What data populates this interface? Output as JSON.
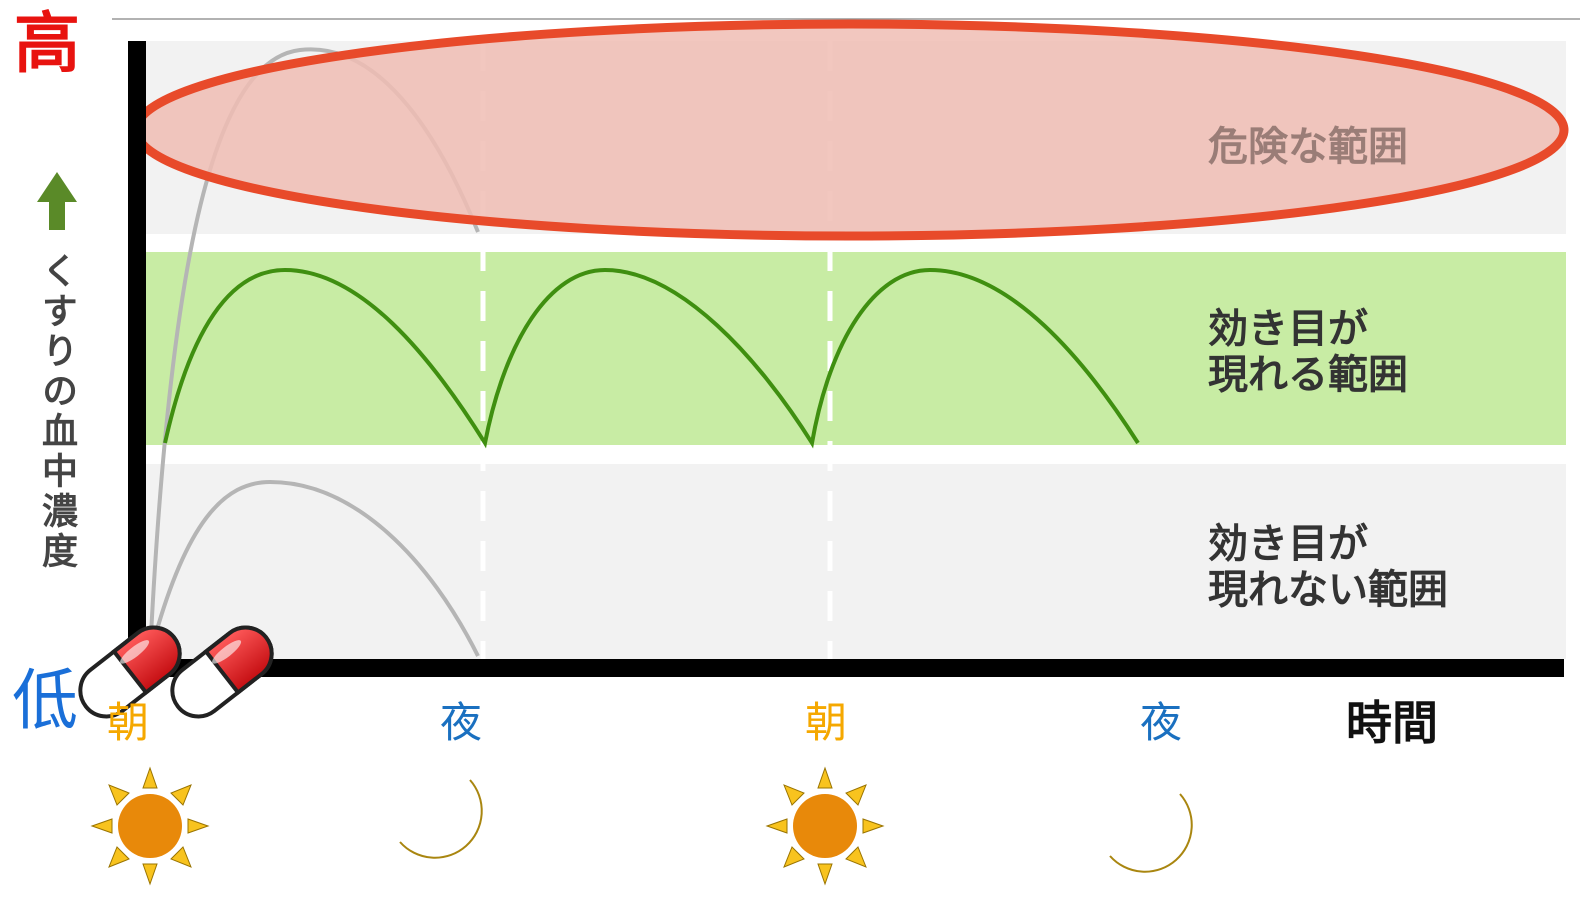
{
  "axis": {
    "high_label": "高",
    "low_label": "低",
    "y_label": "くすりの血中濃度",
    "x_label": "時間",
    "high_color": "#e8130f",
    "low_color": "#1a6fd8",
    "arrow_color": "#5a8a28"
  },
  "time_ticks": [
    {
      "label": "朝",
      "icon": "sun-icon",
      "color": "#f5a800"
    },
    {
      "label": "夜",
      "icon": "moon-icon",
      "color": "#1a70c0"
    },
    {
      "label": "朝",
      "icon": "sun-icon",
      "color": "#f5a800"
    },
    {
      "label": "夜",
      "icon": "moon-icon",
      "color": "#1a70c0"
    }
  ],
  "zones": {
    "danger": {
      "label": "危険な範囲",
      "band_color": "#f2f2f2",
      "highlight_color": "#f0bdb4",
      "outline_color": "#e84a2a",
      "text_color": "#9a7d77"
    },
    "effective": {
      "label": "効き目が\n現れる範囲",
      "band_color": "#c8eca4",
      "text_color": "#333333"
    },
    "ineffective": {
      "label": "効き目が\n現れない範囲",
      "band_color": "#f2f2f2",
      "text_color": "#333333"
    }
  },
  "curves": {
    "effective_color": "#3f8f10",
    "other_color": "#b5b5b5"
  },
  "pills": {
    "count": 2,
    "icon": "capsule-icon",
    "cap_color": "#e0141a"
  }
}
